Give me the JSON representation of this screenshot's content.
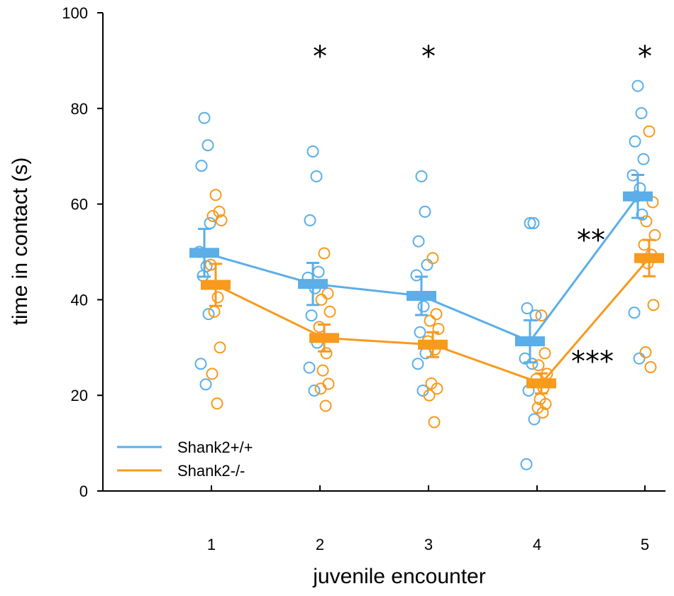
{
  "chart_data": {
    "type": "scatter",
    "xlabel": "juvenile encounter",
    "ylabel": "time in contact (s)",
    "categories": [
      "1",
      "2",
      "3",
      "4",
      "5"
    ],
    "ylim": [
      0,
      100
    ],
    "yticks": [
      "0",
      "20",
      "40",
      "60",
      "80",
      "100"
    ],
    "grid": false,
    "legend_position": "bottom-left",
    "series": [
      {
        "name": "Shank2+/+",
        "color": "#5BAEE8",
        "means": [
          49.8,
          43.3,
          40.8,
          31.3,
          61.6
        ],
        "sem": [
          5.0,
          4.4,
          4.0,
          4.4,
          4.5
        ],
        "points": [
          [
            78,
            72.3,
            68,
            56,
            50,
            47,
            45,
            37,
            26.6,
            22.3
          ],
          [
            71,
            65.8,
            56.6,
            45.8,
            44.6,
            42.4,
            36.7,
            31,
            25.8,
            21
          ],
          [
            65.8,
            58.4,
            52.2,
            47.3,
            45.1,
            38.6,
            33.2,
            28.8,
            26.6,
            21
          ],
          [
            56,
            56,
            38.2,
            36.7,
            27.7,
            26.6,
            21,
            15,
            5.6
          ],
          [
            84.7,
            79,
            73.1,
            69.4,
            66,
            63.3,
            61.6,
            57.8,
            37.3,
            27.7
          ]
        ]
      },
      {
        "name": "Shank2-/-",
        "color": "#F79A1E",
        "means": [
          43.1,
          32.0,
          30.6,
          22.5,
          48.7
        ],
        "sem": [
          4.4,
          2.8,
          2.6,
          2.1,
          3.8
        ],
        "points": [
          [
            61.9,
            58.4,
            57.5,
            56.6,
            47.3,
            40.5,
            37.5,
            30,
            24.5,
            18.3
          ],
          [
            49.7,
            41.3,
            40,
            37.5,
            34.3,
            28.8,
            25.2,
            22.4,
            21.4,
            17.8
          ],
          [
            48.7,
            37,
            35.6,
            33.9,
            31.3,
            29.6,
            22.5,
            21.4,
            20,
            14.4
          ],
          [
            36.7,
            28.8,
            26.3,
            24.5,
            23.4,
            21.5,
            19.2,
            18.2,
            17.4,
            16.4
          ],
          [
            75.2,
            60.4,
            56.4,
            53.5,
            51.5,
            49.4,
            47.6,
            38.9,
            29,
            25.9
          ]
        ]
      }
    ],
    "annotations": {
      "column_stars": [
        {
          "category": "2",
          "text": "*"
        },
        {
          "category": "3",
          "text": "*"
        },
        {
          "category": "5",
          "text": "*"
        }
      ],
      "slope_stars": [
        {
          "series": "Shank2+/+",
          "text": "**"
        },
        {
          "series": "Shank2-/-",
          "text": "***"
        }
      ]
    }
  }
}
